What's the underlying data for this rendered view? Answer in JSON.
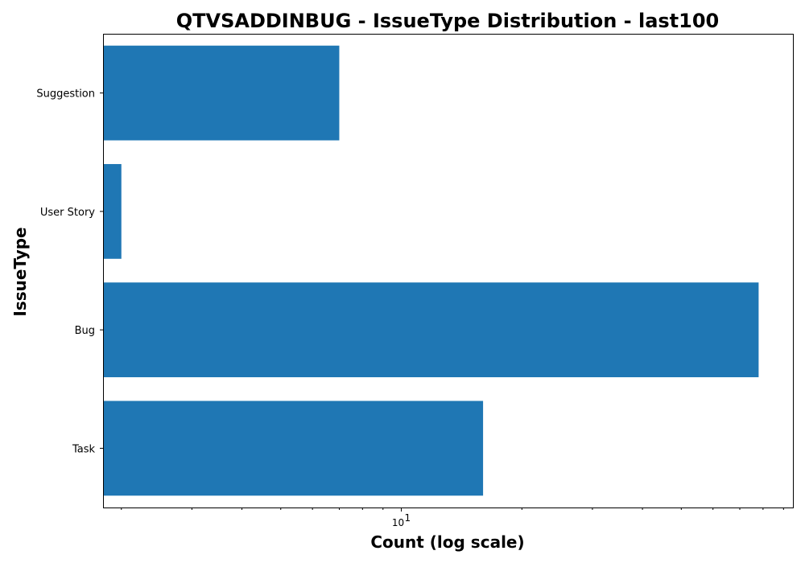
{
  "chart_data": {
    "type": "bar",
    "orientation": "horizontal",
    "title": "QTVSADDINBUG - IssueType Distribution - last100",
    "xlabel": "Count (log scale)",
    "ylabel": "IssueType",
    "x_scale": "log",
    "xlim": [
      1.8,
      95
    ],
    "x_tick_label": "10",
    "x_tick_label_exponent": "1",
    "x_major_tick": 10,
    "categories": [
      "Suggestion",
      "User Story",
      "Bug",
      "Task"
    ],
    "values": [
      7,
      2,
      78,
      16
    ],
    "bar_color": "#1f77b4",
    "grid": false,
    "legend": false
  }
}
